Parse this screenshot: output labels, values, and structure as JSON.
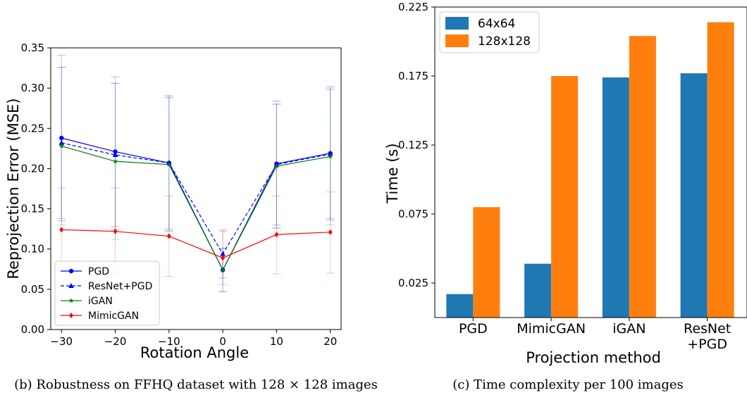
{
  "captions": {
    "left": "(b) Robustness on FFHQ dataset with 128 × 128 images",
    "right": "(c) Time complexity per 100 images"
  },
  "chart_data": [
    {
      "type": "line",
      "title": "",
      "xlabel": "Rotation Angle",
      "ylabel": "Reprojection Error (MSE)",
      "x": [
        -30,
        -20,
        -10,
        0,
        10,
        20
      ],
      "x_ticks": [
        "−30",
        "−20",
        "−10",
        "0",
        "10",
        "20"
      ],
      "xlim": [
        -32,
        22
      ],
      "ylim": [
        0,
        0.35
      ],
      "y_ticks": [
        "0.00",
        "0.05",
        "0.10",
        "0.15",
        "0.20",
        "0.25",
        "0.30",
        "0.35"
      ],
      "grid": false,
      "legend_position": "lower-left",
      "series": [
        {
          "name": "PGD",
          "values": [
            0.238,
            0.221,
            0.207,
            0.074,
            0.206,
            0.219
          ],
          "color": "#0000ff",
          "dash": "solid",
          "marker": "circle",
          "error_low": [
            0.135,
            0.128,
            0.123,
            0.047,
            0.126,
            0.136
          ],
          "error_high": [
            0.341,
            0.314,
            0.291,
            0.101,
            0.284,
            0.302
          ]
        },
        {
          "name": "ResNet+PGD",
          "values": [
            0.232,
            0.217,
            0.207,
            0.094,
            0.205,
            0.218
          ],
          "color": "#0000ff",
          "dash": "dashed",
          "marker": "triangle",
          "error_low": [
            0.138,
            0.124,
            0.125,
            0.064,
            0.13,
            0.138
          ],
          "error_high": [
            0.326,
            0.306,
            0.289,
            0.124,
            0.28,
            0.298
          ]
        },
        {
          "name": "iGAN",
          "values": [
            0.228,
            0.209,
            0.205,
            0.074,
            0.203,
            0.215
          ],
          "color": "#008000",
          "dash": "solid",
          "marker": "star",
          "error_low": [
            0.13,
            0.112,
            0.122,
            0.047,
            0.126,
            0.13
          ],
          "error_high": [
            0.326,
            0.306,
            0.288,
            0.101,
            0.28,
            0.3
          ]
        },
        {
          "name": "MimicGAN",
          "values": [
            0.124,
            0.122,
            0.116,
            0.089,
            0.118,
            0.121
          ],
          "color": "#ff0000",
          "dash": "solid",
          "marker": "diamond",
          "error_low": [
            0.072,
            0.068,
            0.066,
            0.056,
            0.069,
            0.07
          ],
          "error_high": [
            0.176,
            0.176,
            0.166,
            0.122,
            0.166,
            0.171
          ]
        }
      ]
    },
    {
      "type": "bar",
      "title": "",
      "xlabel": "Projection method",
      "ylabel": "Time (s)",
      "categories": [
        [
          "PGD"
        ],
        [
          "MimicGAN"
        ],
        [
          "iGAN"
        ],
        [
          "ResNet",
          "+PGD"
        ]
      ],
      "ylim": [
        0.0,
        0.225
      ],
      "y_ticks": [
        "0.025",
        "0.075",
        "0.125",
        "0.175",
        "0.225"
      ],
      "y_tick_values": [
        0.025,
        0.075,
        0.125,
        0.175,
        0.225
      ],
      "grid": false,
      "legend_position": "top-left",
      "series": [
        {
          "name": "64x64",
          "values": [
            0.017,
            0.039,
            0.174,
            0.177
          ],
          "color": "#1f77b4"
        },
        {
          "name": "128x128",
          "values": [
            0.08,
            0.175,
            0.204,
            0.214
          ],
          "color": "#ff7f0e"
        }
      ]
    }
  ]
}
